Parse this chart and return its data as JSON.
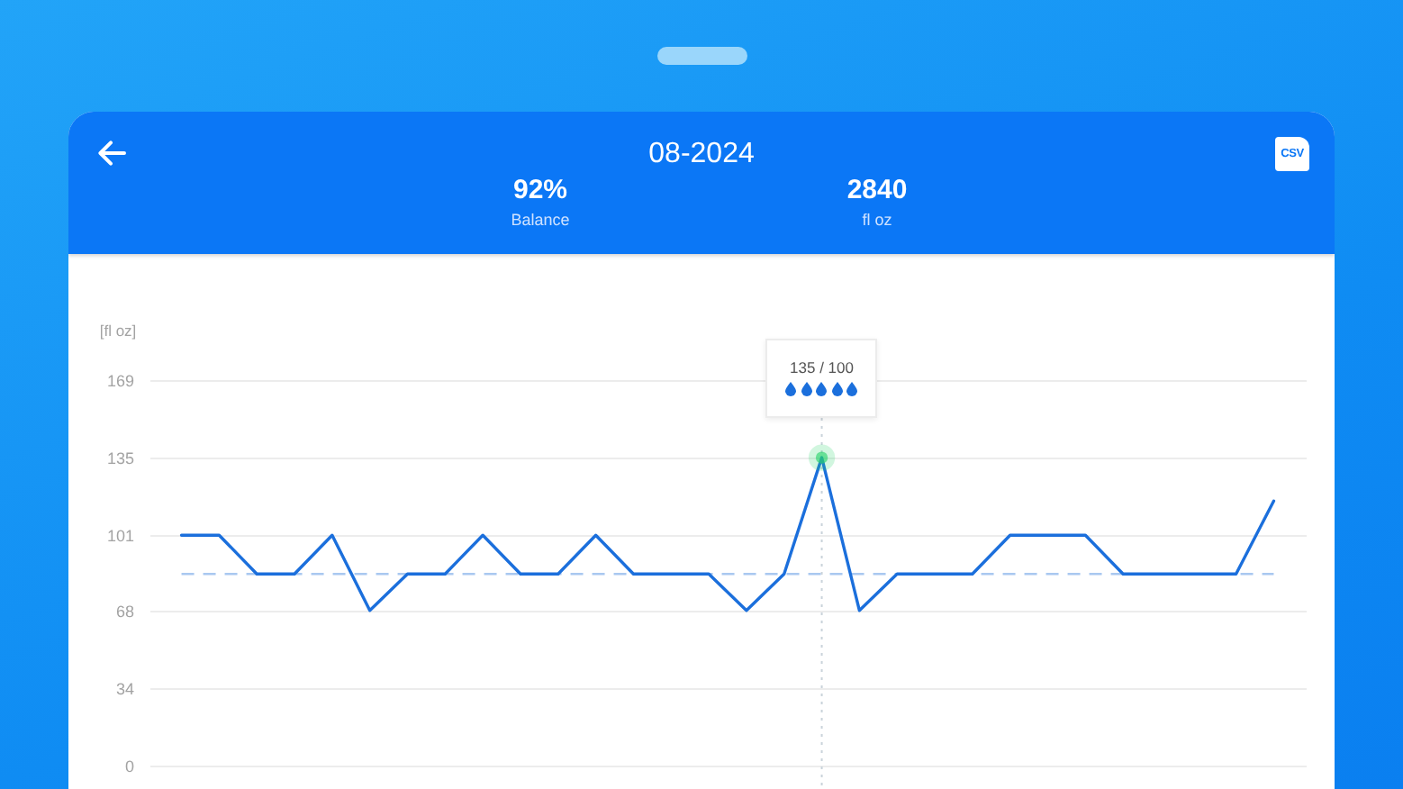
{
  "chart_data": {
    "type": "line",
    "title": "08-2024",
    "ylabel": "[fl oz]",
    "annotations": [
      "92%",
      "Balance",
      "2840",
      "fl oz",
      "135 / 100",
      "CSV"
    ],
    "categories": [
      null,
      null,
      null,
      null,
      null,
      null,
      null,
      null,
      null,
      null,
      null,
      null,
      null,
      null,
      null,
      null,
      null,
      null,
      null,
      null,
      null,
      null,
      null,
      null,
      null,
      null,
      null,
      null,
      null,
      null
    ],
    "series": [
      {
        "type": "line",
        "color": "#1b6fdc",
        "values": [
          101,
          101,
          84,
          84,
          101,
          68,
          84,
          84,
          101,
          84,
          84,
          101,
          84,
          84,
          84,
          68,
          84,
          135,
          68,
          84,
          84,
          84,
          101,
          101,
          101,
          84,
          84,
          84,
          84,
          116
        ]
      },
      {
        "type": "scatter",
        "color": "#27d36a",
        "marker": "circle",
        "values": [
          null,
          null,
          null,
          null,
          null,
          null,
          null,
          null,
          null,
          null,
          null,
          null,
          null,
          null,
          null,
          null,
          null,
          135,
          null,
          null,
          null,
          null,
          null,
          null,
          null,
          null,
          null,
          null,
          null,
          null
        ]
      }
    ],
    "ylim": [
      0,
      169
    ],
    "yticks": [
      0,
      34,
      68,
      101,
      135,
      169
    ],
    "grid": "y",
    "tick_labels": "y",
    "ref_lines": [
      {
        "axis": "y",
        "value": 84,
        "color": "#a9c8f0",
        "line_style": "dashed"
      }
    ]
  }
}
